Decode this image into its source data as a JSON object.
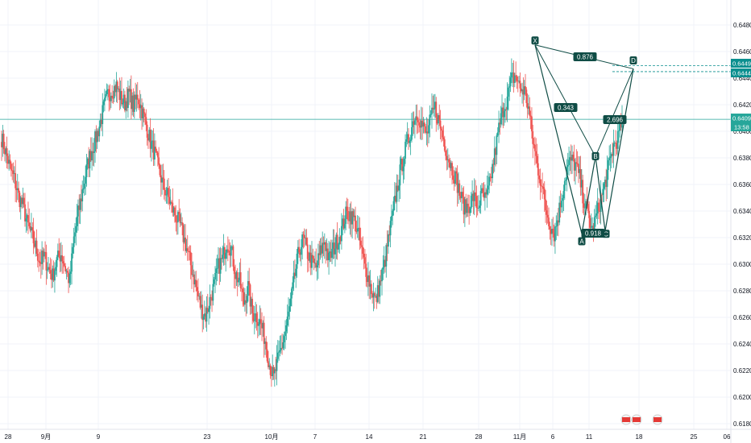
{
  "chart_data": {
    "type": "candlestick",
    "y_range": [
      0.6174,
      0.6495
    ],
    "y_ticks": [
      "0.64800",
      "0.64600",
      "0.64400",
      "0.64200",
      "0.64000",
      "0.63800",
      "0.63600",
      "0.63400",
      "0.63200",
      "0.63000",
      "0.62800",
      "0.62600",
      "0.62400",
      "0.62200",
      "0.62000",
      "0.61800"
    ],
    "x_ticks": [
      "28",
      "9月",
      "9",
      "23",
      "10月",
      "7",
      "14",
      "21",
      "28",
      "11月",
      "6",
      "11",
      "18",
      "25",
      "06"
    ],
    "price_tags": {
      "d_upper": "0.64493",
      "d_lower": "0.64449",
      "current": "0.64090",
      "countdown": "13:58"
    },
    "pattern": {
      "points": [
        {
          "label": "X",
          "y": 0.6465
        },
        {
          "label": "A",
          "y": 0.6323
        },
        {
          "label": "B",
          "y": 0.6381
        },
        {
          "label": "C",
          "y": 0.6325
        },
        {
          "label": "D",
          "y": 0.6447
        }
      ],
      "ratios": [
        "0.876",
        "0.343",
        "0.918",
        "2.696"
      ]
    },
    "close_path": [
      0.6395,
      0.6384,
      0.6372,
      0.6364,
      0.6351,
      0.6344,
      0.6331,
      0.6322,
      0.6313,
      0.6302,
      0.6306,
      0.6297,
      0.6291,
      0.6303,
      0.6308,
      0.6297,
      0.6287,
      0.6319,
      0.6338,
      0.6355,
      0.6371,
      0.6384,
      0.6393,
      0.6404,
      0.6417,
      0.6428,
      0.6431,
      0.6434,
      0.6425,
      0.6421,
      0.6428,
      0.6419,
      0.6427,
      0.6416,
      0.6405,
      0.6392,
      0.6383,
      0.6371,
      0.6359,
      0.6352,
      0.6343,
      0.6336,
      0.6329,
      0.6318,
      0.6306,
      0.6293,
      0.6279,
      0.6266,
      0.6261,
      0.6273,
      0.6284,
      0.6298,
      0.6304,
      0.6317,
      0.6312,
      0.6293,
      0.6287,
      0.6271,
      0.6283,
      0.6263,
      0.6261,
      0.6255,
      0.6243,
      0.6225,
      0.6214,
      0.6227,
      0.6239,
      0.6253,
      0.6271,
      0.6292,
      0.6311,
      0.6319,
      0.6308,
      0.6301,
      0.6297,
      0.6309,
      0.6318,
      0.6303,
      0.6311,
      0.6318,
      0.6326,
      0.6337,
      0.6338,
      0.6333,
      0.6321,
      0.6305,
      0.6293,
      0.6281,
      0.6272,
      0.6285,
      0.6299,
      0.6318,
      0.6337,
      0.6356,
      0.6373,
      0.6386,
      0.6397,
      0.641,
      0.6413,
      0.6404,
      0.6397,
      0.6409,
      0.6418,
      0.6406,
      0.6394,
      0.6381,
      0.6372,
      0.6363,
      0.6351,
      0.6342,
      0.6345,
      0.6351,
      0.6343,
      0.6352,
      0.6348,
      0.6363,
      0.6382,
      0.6402,
      0.6417,
      0.6425,
      0.6439,
      0.6442,
      0.6432,
      0.6431,
      0.6417,
      0.6393,
      0.6375,
      0.6361,
      0.6342,
      0.6331,
      0.6323,
      0.6337,
      0.6355,
      0.6372,
      0.6378,
      0.6375,
      0.6365,
      0.6348,
      0.6337,
      0.6325,
      0.6337,
      0.6349,
      0.6361,
      0.6375,
      0.6389,
      0.6395,
      0.6409
    ]
  }
}
